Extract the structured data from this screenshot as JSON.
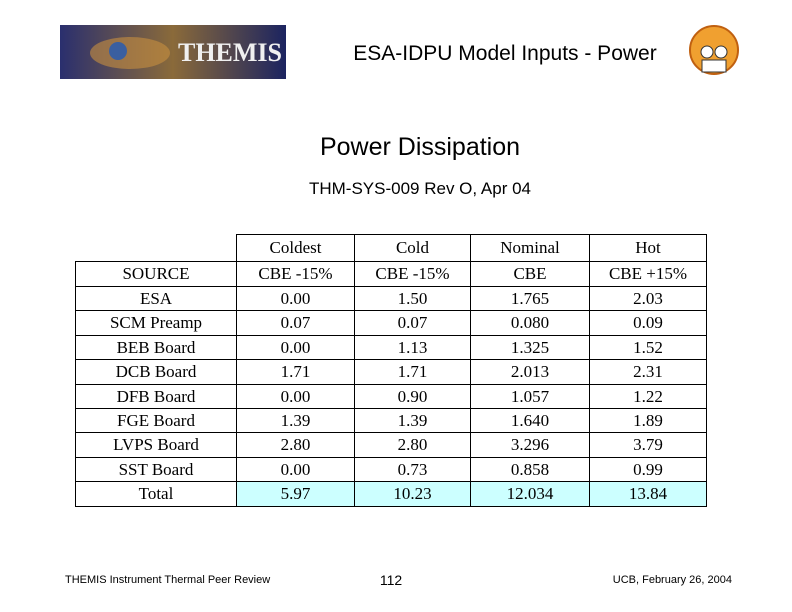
{
  "header": {
    "logo_text": "THEMIS",
    "title": "ESA-IDPU Model Inputs - Power"
  },
  "heading": "Power Dissipation",
  "subheading": "THM-SYS-009 Rev O, Apr 04",
  "table": {
    "group_header": [
      "Coldest",
      "Cold",
      "Nominal",
      "Hot"
    ],
    "columns": [
      "SOURCE",
      "CBE -15%",
      "CBE -15%",
      "CBE",
      "CBE +15%"
    ],
    "rows": [
      [
        "ESA",
        "0.00",
        "1.50",
        "1.765",
        "2.03"
      ],
      [
        "SCM Preamp",
        "0.07",
        "0.07",
        "0.080",
        "0.09"
      ],
      [
        "BEB Board",
        "0.00",
        "1.13",
        "1.325",
        "1.52"
      ],
      [
        "DCB Board",
        "1.71",
        "1.71",
        "2.013",
        "2.31"
      ],
      [
        "DFB Board",
        "0.00",
        "0.90",
        "1.057",
        "1.22"
      ],
      [
        "FGE Board",
        "1.39",
        "1.39",
        "1.640",
        "1.89"
      ],
      [
        "LVPS Board",
        "2.80",
        "2.80",
        "3.296",
        "3.79"
      ],
      [
        "SST Board",
        "0.00",
        "0.73",
        "0.858",
        "0.99"
      ],
      [
        "Total",
        "5.97",
        "10.23",
        "12.034",
        "13.84"
      ]
    ]
  },
  "footer": {
    "left": "THEMIS Instrument Thermal Peer Review",
    "page": "112",
    "right": "UCB, February 26, 2004"
  }
}
